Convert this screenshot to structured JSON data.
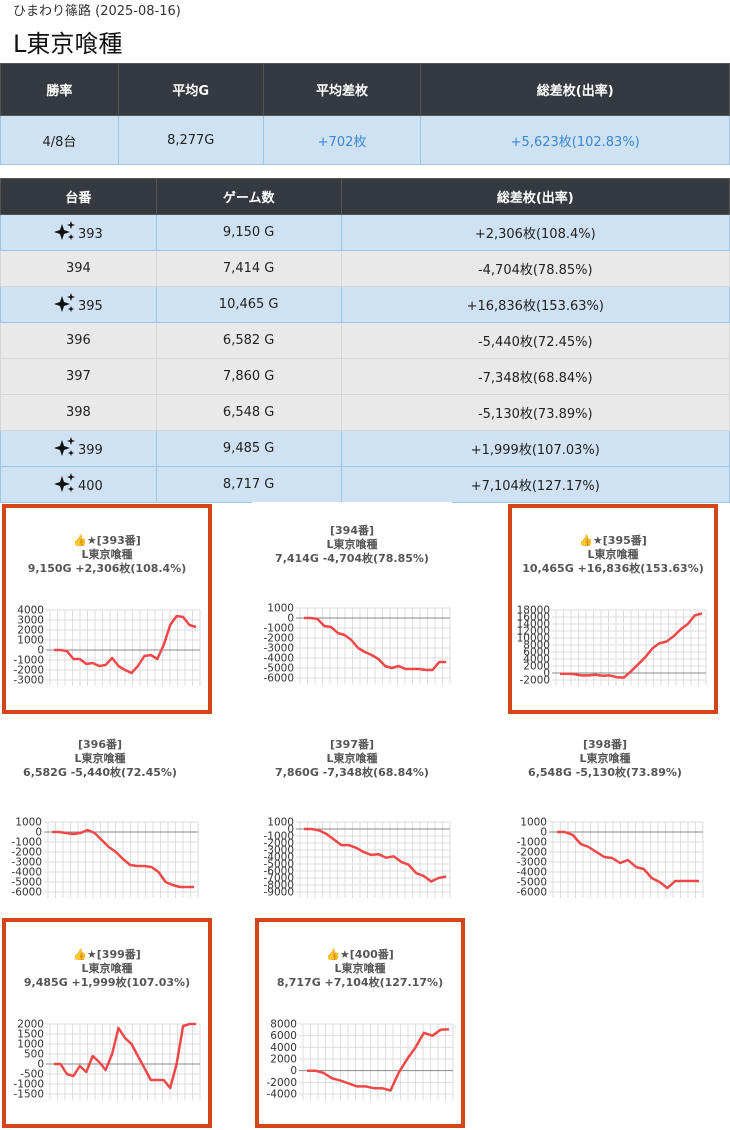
{
  "header": {
    "subtitle": "ひまわり篠路 (2025-08-16)",
    "title": "L東京喰種"
  },
  "summary": {
    "headers": [
      "勝率",
      "平均G",
      "平均差枚",
      "総差枚(出率)"
    ],
    "values": [
      "4/8台",
      "8,277G",
      "+702枚",
      "+5,623枚(102.83%)"
    ]
  },
  "machines": {
    "headers": [
      "台番",
      "ゲーム数",
      "総差枚(出率)"
    ],
    "rows": [
      {
        "number": "393",
        "games": "9,150 G",
        "result": "+2,306枚(108.4%)",
        "highlight": true
      },
      {
        "number": "394",
        "games": "7,414 G",
        "result": "-4,704枚(78.85%)",
        "highlight": false
      },
      {
        "number": "395",
        "games": "10,465 G",
        "result": "+16,836枚(153.63%)",
        "highlight": true
      },
      {
        "number": "396",
        "games": "6,582 G",
        "result": "-5,440枚(72.45%)",
        "highlight": false
      },
      {
        "number": "397",
        "games": "7,860 G",
        "result": "-7,348枚(68.84%)",
        "highlight": false
      },
      {
        "number": "398",
        "games": "6,548 G",
        "result": "-5,130枚(73.89%)",
        "highlight": false
      },
      {
        "number": "399",
        "games": "9,485 G",
        "result": "+1,999枚(107.03%)",
        "highlight": true
      },
      {
        "number": "400",
        "games": "8,717 G",
        "result": "+7,104枚(127.17%)",
        "highlight": true
      }
    ]
  },
  "colors": {
    "accent": "#d5451c",
    "line": "#f04848",
    "header_bg": "#343a40",
    "highlight_row": "#cfe2f3"
  },
  "chart_data": [
    {
      "type": "line",
      "title_lines": [
        "👍★[393番]",
        "L東京喰種",
        "9,150G +2,306枚(108.4%)"
      ],
      "highlight": true,
      "yticks": [
        4000,
        3000,
        2000,
        1000,
        0,
        -1000,
        -2000,
        -3000
      ],
      "ylim": [
        -3000,
        4000
      ],
      "values": [
        0,
        0,
        -100,
        -900,
        -900,
        -1400,
        -1300,
        -1600,
        -1500,
        -800,
        -1600,
        -2000,
        -2300,
        -1600,
        -600,
        -500,
        -900,
        500,
        2500,
        3400,
        3300,
        2500,
        2300
      ]
    },
    {
      "type": "line",
      "title_lines": [
        "[394番]",
        "L東京喰種",
        "7,414G -4,704枚(78.85%)"
      ],
      "highlight": false,
      "yticks": [
        1000,
        0,
        -1000,
        -2000,
        -3000,
        -4000,
        -5000,
        -6000
      ],
      "ylim": [
        -6000,
        1000
      ],
      "values": [
        0,
        0,
        -100,
        -800,
        -900,
        -1500,
        -1700,
        -2200,
        -3000,
        -3400,
        -3700,
        -4100,
        -4800,
        -5000,
        -4800,
        -5100,
        -5100,
        -5100,
        -5200,
        -5200,
        -4400,
        -4400
      ]
    },
    {
      "type": "line",
      "title_lines": [
        "👍★[395番]",
        "L東京喰種",
        "10,465G +16,836枚(153.63%)"
      ],
      "highlight": true,
      "yticks": [
        18000,
        16000,
        14000,
        12000,
        10000,
        8000,
        6000,
        4000,
        2000,
        0,
        -2000
      ],
      "ylim": [
        -2000,
        18000
      ],
      "values": [
        -200,
        -200,
        -300,
        -700,
        -700,
        -500,
        -800,
        -700,
        -1200,
        -1300,
        500,
        2500,
        4500,
        7000,
        8500,
        9000,
        10500,
        12500,
        14000,
        16500,
        17000
      ]
    },
    {
      "type": "line",
      "title_lines": [
        "[396番]",
        "L東京喰種",
        "6,582G -5,440枚(72.45%)"
      ],
      "highlight": false,
      "yticks": [
        1000,
        0,
        -1000,
        -2000,
        -3000,
        -4000,
        -5000,
        -6000
      ],
      "ylim": [
        -6000,
        1000
      ],
      "values": [
        0,
        0,
        -100,
        -200,
        -100,
        200,
        -100,
        -800,
        -1500,
        -2000,
        -2700,
        -3300,
        -3400,
        -3400,
        -3500,
        -4000,
        -5000,
        -5300,
        -5500,
        -5500,
        -5500
      ]
    },
    {
      "type": "line",
      "title_lines": [
        "[397番]",
        "L東京喰種",
        "7,860G -7,348枚(68.84%)"
      ],
      "highlight": false,
      "yticks": [
        1000,
        0,
        -1000,
        -2000,
        -3000,
        -4000,
        -5000,
        -6000,
        -7000,
        -8000,
        -9000
      ],
      "ylim": [
        -9000,
        1000
      ],
      "values": [
        0,
        0,
        -200,
        -700,
        -1500,
        -2300,
        -2300,
        -2700,
        -3300,
        -3700,
        -3600,
        -4100,
        -3900,
        -4700,
        -5100,
        -6300,
        -6700,
        -7500,
        -7000,
        -6800
      ]
    },
    {
      "type": "line",
      "title_lines": [
        "[398番]",
        "L東京喰種",
        "6,548G -5,130枚(73.89%)"
      ],
      "highlight": false,
      "yticks": [
        1000,
        0,
        -1000,
        -2000,
        -3000,
        -4000,
        -5000,
        -6000
      ],
      "ylim": [
        -6000,
        1000
      ],
      "values": [
        0,
        0,
        -300,
        -1200,
        -1500,
        -2000,
        -2500,
        -2600,
        -3100,
        -2800,
        -3500,
        -3700,
        -4600,
        -5000,
        -5600,
        -4900,
        -4900,
        -4900,
        -4900
      ]
    },
    {
      "type": "line",
      "title_lines": [
        "👍★[399番]",
        "L東京喰種",
        "9,485G +1,999枚(107.03%)"
      ],
      "highlight": true,
      "yticks": [
        2000,
        1500,
        1000,
        500,
        0,
        -500,
        -1000,
        -1500
      ],
      "ylim": [
        -1500,
        2000
      ],
      "values": [
        0,
        0,
        -500,
        -600,
        -100,
        -400,
        400,
        100,
        -300,
        500,
        1800,
        1300,
        1000,
        400,
        -200,
        -800,
        -800,
        -800,
        -1200,
        0,
        1900,
        2000,
        2000
      ]
    },
    {
      "type": "line",
      "title_lines": [
        "👍★[400番]",
        "L東京喰種",
        "8,717G +7,104枚(127.17%)"
      ],
      "highlight": true,
      "yticks": [
        8000,
        6000,
        4000,
        2000,
        0,
        -2000,
        -4000
      ],
      "ylim": [
        -4000,
        8000
      ],
      "values": [
        0,
        0,
        -400,
        -1300,
        -1700,
        -2200,
        -2700,
        -2700,
        -3000,
        -3000,
        -3400,
        -300,
        2000,
        4000,
        6500,
        6000,
        7000,
        7100
      ]
    }
  ]
}
